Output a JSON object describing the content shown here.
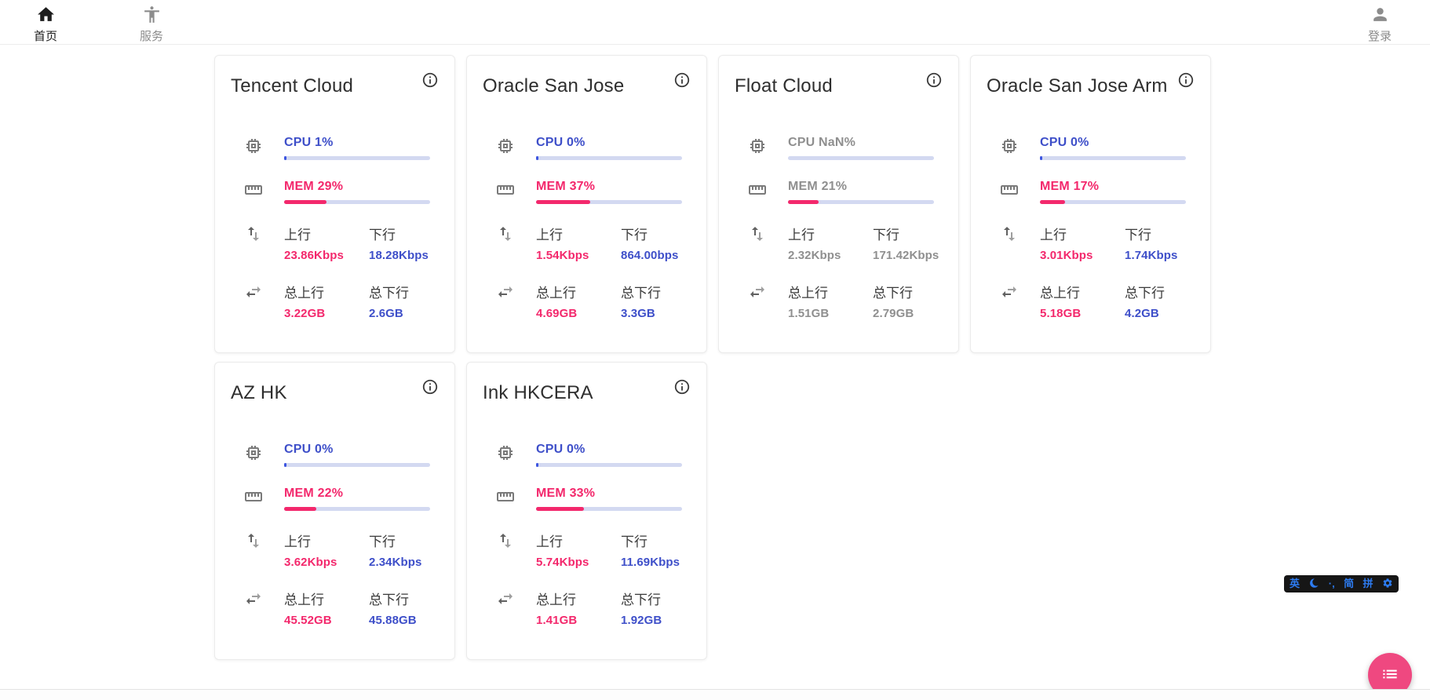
{
  "navbar": {
    "home": {
      "label": "首页"
    },
    "services": {
      "label": "服务"
    },
    "login": {
      "label": "登录"
    }
  },
  "labels": {
    "upload": "上行",
    "download": "下行",
    "total_upload": "总上行",
    "total_download": "总下行"
  },
  "colors": {
    "accent_blue": "#3e4fc9",
    "accent_pink": "#f3286c",
    "bar_track": "#d3d9f1",
    "fab_pink": "#ef4880",
    "ime_blue": "#2d7bf0",
    "offline_gray": "#8f8f8f"
  },
  "servers": [
    {
      "name": "Tencent Cloud",
      "cpu_label": "CPU 1%",
      "cpu_percent": 1,
      "mem_label": "MEM 29%",
      "mem_percent": 29,
      "upload": "23.86Kbps",
      "download": "18.28Kbps",
      "total_upload": "3.22GB",
      "total_download": "2.6GB",
      "offline": false
    },
    {
      "name": "Oracle San Jose",
      "cpu_label": "CPU 0%",
      "cpu_percent": 0,
      "mem_label": "MEM 37%",
      "mem_percent": 37,
      "upload": "1.54Kbps",
      "download": "864.00bps",
      "total_upload": "4.69GB",
      "total_download": "3.3GB",
      "offline": false
    },
    {
      "name": "Float Cloud",
      "cpu_label": "CPU NaN%",
      "cpu_percent": null,
      "mem_label": "MEM 21%",
      "mem_percent": 21,
      "upload": "2.32Kbps",
      "download": "171.42Kbps",
      "total_upload": "1.51GB",
      "total_download": "2.79GB",
      "offline": true
    },
    {
      "name": "Oracle San Jose Arm",
      "cpu_label": "CPU 0%",
      "cpu_percent": 0,
      "mem_label": "MEM 17%",
      "mem_percent": 17,
      "upload": "3.01Kbps",
      "download": "1.74Kbps",
      "total_upload": "5.18GB",
      "total_download": "4.2GB",
      "offline": false
    },
    {
      "name": "AZ HK",
      "cpu_label": "CPU 0%",
      "cpu_percent": 0,
      "mem_label": "MEM 22%",
      "mem_percent": 22,
      "upload": "3.62Kbps",
      "download": "2.34Kbps",
      "total_upload": "45.52GB",
      "total_download": "45.88GB",
      "offline": false
    },
    {
      "name": "Ink HKCERA",
      "cpu_label": "CPU 0%",
      "cpu_percent": 0,
      "mem_label": "MEM 33%",
      "mem_percent": 33,
      "upload": "5.74Kbps",
      "download": "11.69Kbps",
      "total_upload": "1.41GB",
      "total_download": "1.92GB",
      "offline": false
    }
  ],
  "ime": {
    "lang": "英",
    "punct": "·,",
    "simplified": "简",
    "pinyin": "拼"
  }
}
